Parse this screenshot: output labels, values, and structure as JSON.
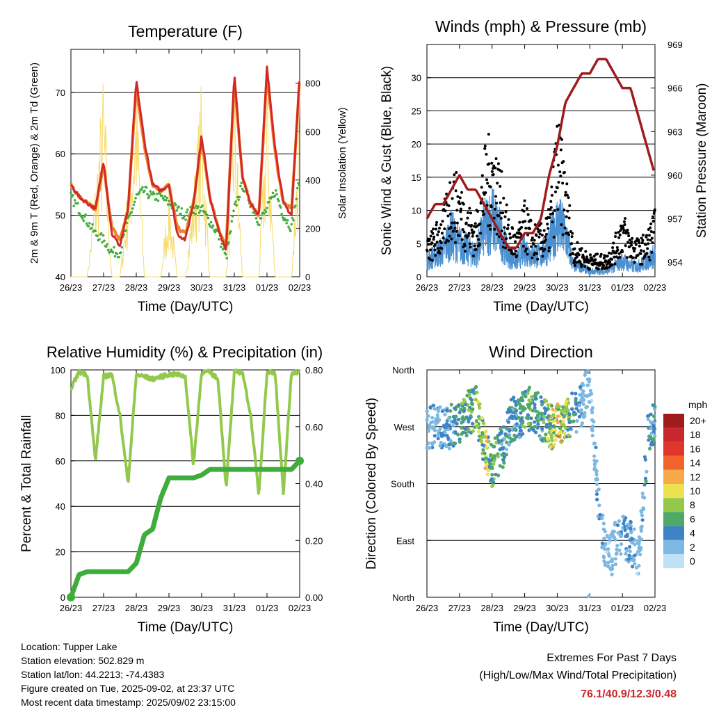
{
  "x_tick_labels": [
    "26/23",
    "27/23",
    "28/23",
    "29/23",
    "30/23",
    "31/23",
    "01/23",
    "02/23"
  ],
  "temperature": {
    "title": "Temperature (F)",
    "xlabel": "Time (Day/UTC)",
    "ylabel_left": "2m & 9m T (Red, Orange) & 2m Td (Green)",
    "ylabel_right": "Solar Insolation (Yellow)",
    "left_ticks": [
      "40",
      "50",
      "60",
      "70"
    ],
    "right_ticks": [
      "0",
      "200",
      "400",
      "600",
      "800"
    ]
  },
  "winds": {
    "title": "Winds (mph) & Pressure (mb)",
    "xlabel": "Time (Day/UTC)",
    "ylabel_left": "Sonic Wind & Gust (Blue, Black)",
    "ylabel_right": "Station Pressure (Maroon)",
    "left_ticks": [
      "0",
      "5",
      "10",
      "15",
      "20",
      "25",
      "30"
    ],
    "right_ticks": [
      "954",
      "957",
      "960",
      "963",
      "966",
      "969"
    ]
  },
  "humidity": {
    "title": "Relative Humidity (%) & Precipitation (in)",
    "xlabel": "Time (Day/UTC)",
    "ylabel_left": "Percent & Total Rainfall",
    "left_ticks": [
      "0",
      "20",
      "40",
      "60",
      "80",
      "100"
    ],
    "right_ticks": [
      "0.00",
      "0.20",
      "0.40",
      "0.60",
      "0.80"
    ]
  },
  "direction": {
    "title": "Wind Direction",
    "xlabel": "Time (Day/UTC)",
    "ylabel_left": "Direction (Colored By Speed)",
    "dir_labels": [
      "North",
      "West",
      "South",
      "East",
      "North"
    ],
    "colorbar_unit": "mph",
    "colorbar_labels": [
      "20+",
      "18",
      "16",
      "14",
      "12",
      "10",
      "8",
      "6",
      "4",
      "2",
      "0"
    ],
    "colorbar_colors": [
      "#a01a1e",
      "#c8282d",
      "#e0352b",
      "#f0642c",
      "#f7a94a",
      "#ece250",
      "#93c84a",
      "#4ea866",
      "#3e84c4",
      "#7db8e2",
      "#bde2f6"
    ]
  },
  "info": {
    "location": "Location: Tupper Lake",
    "elevation": "Station elevation: 502.829 m",
    "latlon": "Station lat/lon: 44.2213; -74.4383",
    "created": "Figure created on Tue, 2025-09-02, at 23:37 UTC",
    "timestamp": "Most recent data timestamp: 2025/09/02 23:15:00"
  },
  "extremes": {
    "title": "Extremes For Past 7 Days",
    "subtitle": "(High/Low/Max Wind/Total Precipitation)",
    "values": "76.1/40.9/12.3/0.48"
  },
  "chart_data": [
    {
      "type": "line",
      "x": [
        0,
        0.25,
        0.5,
        0.75,
        1,
        1.25,
        1.5,
        1.75,
        2,
        2.25,
        2.5,
        2.75,
        3,
        3.25,
        3.5,
        3.75,
        4,
        4.25,
        4.5,
        4.75,
        5,
        5.25,
        5.5,
        5.75,
        6,
        6.25,
        6.5,
        6.75,
        7
      ],
      "series": [
        {
          "name": "2m T",
          "color": "#d12a26",
          "values": [
            55,
            53,
            52,
            51,
            59,
            47,
            45,
            51,
            72,
            62,
            55,
            54,
            55,
            47,
            46,
            52,
            63,
            53,
            48,
            44,
            73,
            56,
            52,
            50,
            74,
            61,
            52,
            50,
            73
          ]
        },
        {
          "name": "9m T",
          "color": "#f0842e",
          "values": [
            55,
            53,
            52,
            51,
            58,
            48,
            46,
            51,
            71,
            61,
            55,
            54,
            55,
            48,
            47,
            52,
            62,
            53,
            48,
            45,
            72,
            56,
            52,
            50,
            73,
            60,
            52,
            51,
            72
          ]
        },
        {
          "name": "2m Td",
          "color": "#44ad3c",
          "values": [
            53,
            51,
            49,
            47,
            46,
            44,
            44,
            49,
            53,
            54,
            53,
            53,
            52,
            51,
            50,
            51,
            51,
            49,
            47,
            43,
            51,
            55,
            52,
            49,
            51,
            54,
            50,
            48,
            56
          ]
        },
        {
          "name": "Solar Insolation",
          "color": "#f5da6a",
          "axis": "right",
          "values": [
            0,
            0,
            0,
            420,
            880,
            0,
            0,
            420,
            880,
            0,
            0,
            0,
            400,
            0,
            0,
            400,
            840,
            0,
            0,
            0,
            860,
            0,
            0,
            0,
            840,
            0,
            0,
            0,
            800
          ]
        }
      ],
      "ylim": [
        40,
        77
      ],
      "ylim_right": [
        0,
        940
      ]
    },
    {
      "type": "line",
      "x": [
        0,
        0.25,
        0.5,
        0.75,
        1,
        1.25,
        1.5,
        1.75,
        2,
        2.25,
        2.5,
        2.75,
        3,
        3.25,
        3.5,
        3.75,
        4,
        4.25,
        4.5,
        4.75,
        5,
        5.25,
        5.5,
        5.75,
        6,
        6.25,
        6.5,
        6.75,
        7
      ],
      "series": [
        {
          "name": "Sonic Wind",
          "color": "#4a90d0",
          "values": [
            3,
            4,
            5,
            8,
            6,
            5,
            4,
            9,
            11,
            8,
            4,
            3,
            5,
            4,
            4,
            6,
            10,
            8,
            2,
            2,
            1,
            1,
            1,
            2,
            3,
            2,
            2,
            3,
            4
          ]
        },
        {
          "name": "Gust",
          "color": "#000000",
          "values": [
            5,
            7,
            9,
            15,
            13,
            10,
            8,
            17,
            20,
            15,
            8,
            6,
            10,
            7,
            7,
            9,
            22,
            15,
            5,
            4,
            3,
            3,
            3,
            5,
            9,
            6,
            5,
            6,
            9
          ]
        },
        {
          "name": "Station Pressure",
          "color": "#9e1c1e",
          "axis": "right",
          "values": [
            957,
            958,
            958,
            959,
            960,
            959,
            959,
            958,
            957,
            956,
            955,
            955,
            956,
            956,
            957,
            960,
            962,
            965,
            966,
            967,
            967,
            968,
            968,
            967,
            966,
            966,
            964,
            962,
            960
          ]
        }
      ],
      "ylim": [
        0,
        35
      ],
      "ylim_right": [
        953,
        969
      ]
    },
    {
      "type": "line",
      "x": [
        0,
        0.25,
        0.5,
        0.75,
        1,
        1.25,
        1.5,
        1.75,
        2,
        2.25,
        2.5,
        2.75,
        3,
        3.25,
        3.5,
        3.75,
        4,
        4.25,
        4.5,
        4.75,
        5,
        5.25,
        5.5,
        5.75,
        6,
        6.25,
        6.5,
        6.75,
        7
      ],
      "series": [
        {
          "name": "Relative Humidity",
          "color": "#92c94c",
          "values": [
            92,
            99,
            98,
            60,
            97,
            98,
            80,
            50,
            98,
            97,
            96,
            97,
            98,
            98,
            97,
            58,
            99,
            99,
            96,
            48,
            99,
            99,
            80,
            45,
            99,
            99,
            45,
            99,
            99
          ]
        },
        {
          "name": "Total Rainfall",
          "color": "#3fad3c",
          "axis": "right",
          "values": [
            0,
            0.08,
            0.09,
            0.09,
            0.09,
            0.09,
            0.09,
            0.09,
            0.12,
            0.22,
            0.24,
            0.35,
            0.42,
            0.42,
            0.42,
            0.42,
            0.43,
            0.45,
            0.45,
            0.45,
            0.45,
            0.45,
            0.45,
            0.45,
            0.45,
            0.45,
            0.45,
            0.45,
            0.48
          ]
        }
      ],
      "ylim": [
        0,
        100
      ],
      "ylim_right": [
        0,
        0.8
      ]
    },
    {
      "type": "scatter",
      "x": [
        0.3,
        0.6,
        0.9,
        1.2,
        1.5,
        1.8,
        2.0,
        2.3,
        2.6,
        2.9,
        3.2,
        3.5,
        3.8,
        4.1,
        4.4,
        4.7,
        5.0,
        5.3,
        5.6,
        5.9,
        6.2,
        6.5,
        6.8
      ],
      "direction_deg": [
        270,
        265,
        275,
        290,
        300,
        230,
        210,
        235,
        280,
        290,
        300,
        285,
        270,
        275,
        290,
        300,
        340,
        120,
        60,
        100,
        90,
        60,
        270
      ],
      "speed_mph": [
        3,
        4,
        5,
        7,
        8,
        10,
        9,
        6,
        5,
        6,
        8,
        5,
        10,
        12,
        6,
        3,
        2,
        3,
        2,
        3,
        4,
        2,
        5
      ],
      "ylim": [
        0,
        360
      ]
    }
  ]
}
